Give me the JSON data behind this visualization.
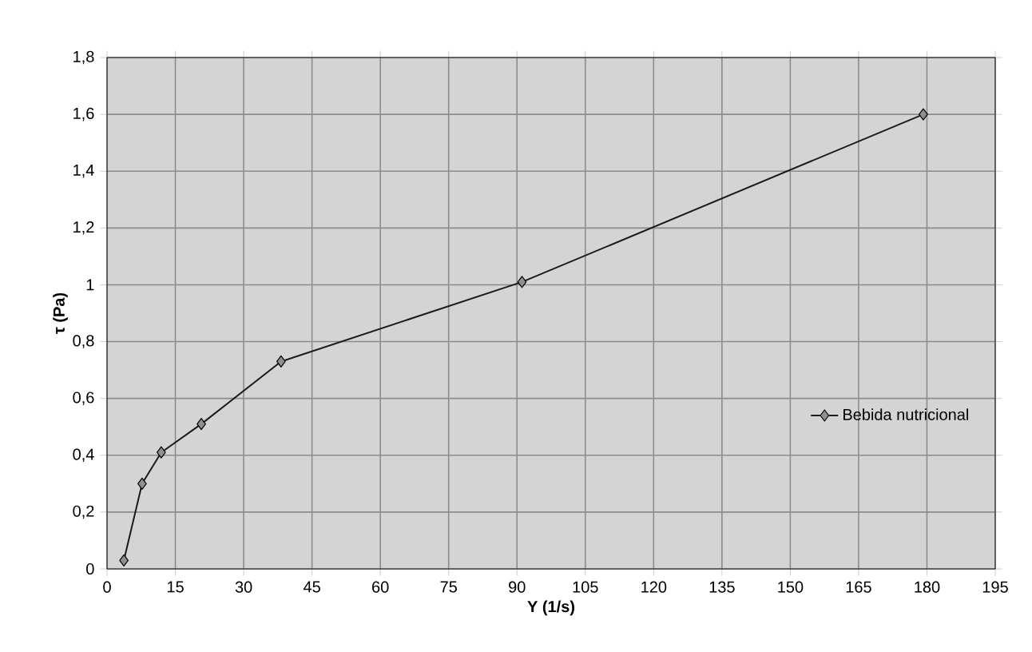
{
  "chart_data": {
    "type": "line",
    "xlabel": "Y (1/s)",
    "ylabel": "τ (Pa)",
    "x": [
      3.7,
      7.7,
      11.9,
      20.7,
      38.2,
      91.1,
      179.2
    ],
    "series": [
      {
        "name": "Bebida nutricional",
        "color": "#1a1a1a",
        "values": [
          0.03,
          0.3,
          0.41,
          0.51,
          0.73,
          1.01,
          1.6
        ]
      }
    ],
    "xlim": [
      0,
      195
    ],
    "xticks": [
      0,
      15,
      30,
      45,
      60,
      75,
      90,
      105,
      120,
      135,
      150,
      165,
      180,
      195
    ],
    "ylim": [
      0,
      1.8
    ],
    "yticks": [
      0,
      {
        "value": 0.2,
        "label": "0,2"
      },
      {
        "value": 0.4,
        "label": "0,4"
      },
      {
        "value": 0.6,
        "label": "0,6"
      },
      {
        "value": 0.8,
        "label": "0,8"
      },
      1,
      {
        "value": 1.2,
        "label": "1,2"
      },
      {
        "value": 1.4,
        "label": "1,4"
      },
      {
        "value": 1.6,
        "label": "1,6"
      },
      {
        "value": 1.8,
        "label": "1,8"
      }
    ],
    "grid": true,
    "legend": "right",
    "marker": "diamond",
    "line_style": "solid"
  }
}
